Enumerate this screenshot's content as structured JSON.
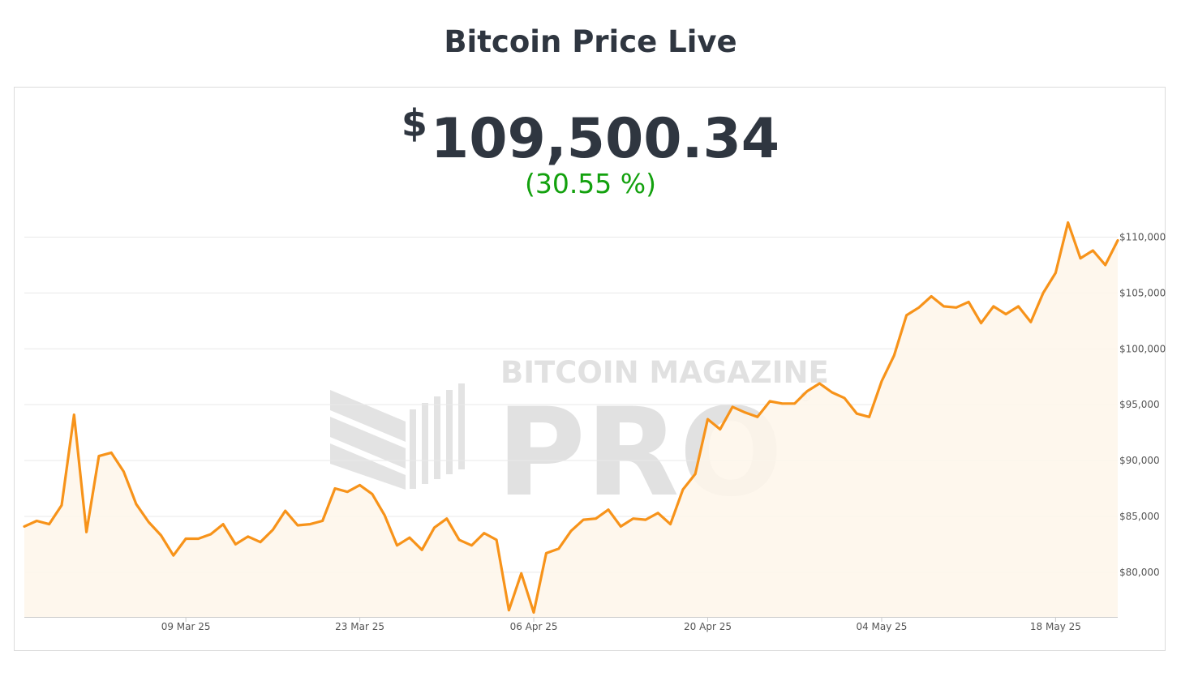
{
  "header": {
    "title": "Bitcoin Price Live"
  },
  "ticker": {
    "currency_symbol": "$",
    "price": "109,500.34",
    "change": "(30.55 %)"
  },
  "watermark": {
    "line1": "BITCOIN MAGAZINE",
    "line2": "PRO",
    "mark": "®"
  },
  "colors": {
    "line": "#f7931a",
    "fill": "#fef6ea",
    "positive": "#13a10e",
    "text": "#2f3640"
  },
  "chart_data": {
    "type": "area",
    "title": "",
    "xlabel": "",
    "ylabel": "",
    "start_date": "2025-02-24",
    "x_ticks": [
      {
        "label": "09 Mar 25",
        "day": 13
      },
      {
        "label": "23 Mar 25",
        "day": 27
      },
      {
        "label": "06 Apr 25",
        "day": 41
      },
      {
        "label": "20 Apr 25",
        "day": 55
      },
      {
        "label": "04 May 25",
        "day": 69
      },
      {
        "label": "18 May 25",
        "day": 83
      }
    ],
    "y_ticks": [
      80000,
      85000,
      90000,
      95000,
      100000,
      105000,
      110000
    ],
    "y_tick_labels": [
      "$80,000",
      "$85,000",
      "$90,000",
      "$95,000",
      "$100,000",
      "$105,000",
      "$110,000"
    ],
    "ylim": [
      76000,
      112500
    ],
    "y_axis_position": "right",
    "grid": true,
    "series": [
      {
        "name": "",
        "values": [
          84100,
          84600,
          84300,
          86000,
          94100,
          83600,
          90400,
          90700,
          89000,
          86100,
          84500,
          83300,
          81500,
          83000,
          83000,
          83400,
          84300,
          82500,
          83200,
          82700,
          83800,
          85500,
          84200,
          84300,
          84600,
          87500,
          87200,
          87800,
          87000,
          85100,
          82400,
          83100,
          82000,
          84000,
          84800,
          82900,
          82400,
          83500,
          82900,
          76600,
          79900,
          76400,
          81700,
          82100,
          83700,
          84700,
          84800,
          85600,
          84100,
          84800,
          84700,
          85300,
          84300,
          87400,
          88800,
          93700,
          92800,
          94800,
          94300,
          93900,
          95300,
          95100,
          95100,
          96200,
          96900,
          96100,
          95600,
          94200,
          93900,
          97100,
          99400,
          103000,
          103700,
          104700,
          103800,
          103700,
          104200,
          102300,
          103800,
          103100,
          103800,
          102400,
          105000,
          106800,
          111300,
          108100,
          108800,
          107500,
          109700
        ]
      }
    ]
  }
}
